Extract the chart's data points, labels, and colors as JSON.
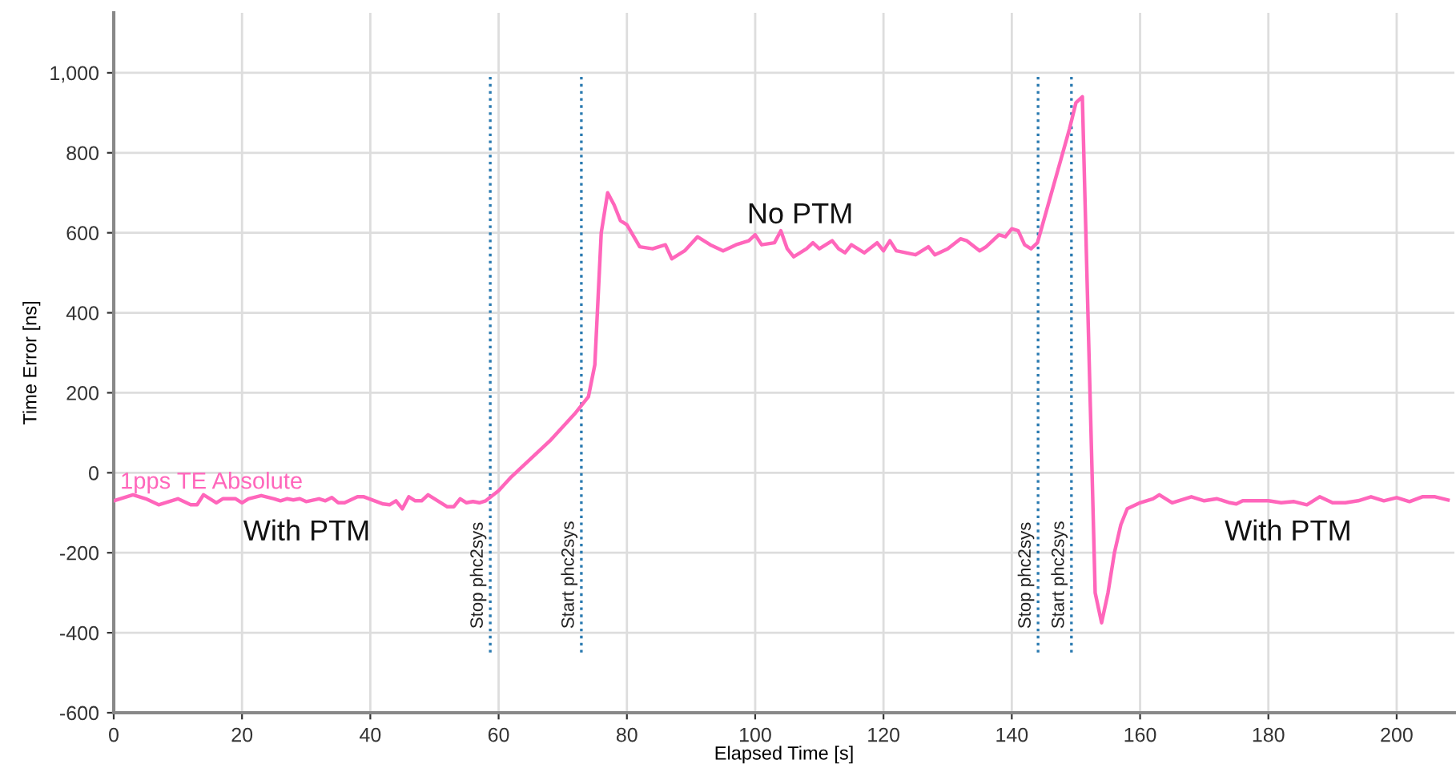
{
  "chart_data": {
    "type": "line",
    "xlabel": "Elapsed Time [s]",
    "ylabel": "Time Error [ns]",
    "xlim": [
      0,
      209
    ],
    "ylim": [
      -600,
      1150
    ],
    "xticks": [
      0,
      20,
      40,
      60,
      80,
      100,
      120,
      140,
      160,
      180,
      200
    ],
    "yticks": [
      -600,
      -400,
      -200,
      0,
      200,
      400,
      600,
      800,
      {
        "value": 1000,
        "label": "1,000"
      }
    ],
    "grid": true,
    "line_style": "solid",
    "marker": "none",
    "series": [
      {
        "name": "1pps TE Absolute",
        "color": "#ff66bb",
        "x": [
          0,
          1,
          3,
          5,
          7,
          10,
          12,
          13,
          14,
          16,
          17,
          19,
          20,
          21,
          23,
          25,
          26,
          27,
          28,
          29,
          30,
          32,
          33,
          34,
          35,
          36,
          38,
          39,
          42,
          43,
          44,
          45,
          46,
          47,
          48,
          49,
          50,
          52,
          53,
          54,
          55,
          56,
          57,
          58,
          60,
          62,
          64,
          66,
          68,
          70,
          72,
          73,
          74,
          75,
          76,
          77,
          78,
          79,
          80,
          82,
          84,
          86,
          87,
          89,
          91,
          93,
          95,
          97,
          99,
          100,
          101,
          103,
          104,
          105,
          106,
          108,
          109,
          110,
          112,
          113,
          114,
          115,
          117,
          119,
          120,
          121,
          122,
          125,
          127,
          128,
          130,
          132,
          133,
          135,
          136,
          138,
          139,
          140,
          141,
          142,
          143,
          144,
          149,
          150,
          151,
          153,
          154,
          155,
          156,
          157,
          158,
          160,
          162,
          163,
          165,
          167,
          168,
          170,
          172,
          174,
          175,
          176,
          180,
          182,
          184,
          186,
          188,
          190,
          192,
          194,
          196,
          198,
          200,
          202,
          204,
          206,
          208
        ],
        "values": [
          -70,
          -65,
          -55,
          -65,
          -80,
          -65,
          -80,
          -80,
          -55,
          -75,
          -65,
          -65,
          -75,
          -65,
          -57,
          -65,
          -70,
          -65,
          -68,
          -65,
          -72,
          -65,
          -70,
          -62,
          -75,
          -75,
          -60,
          -60,
          -78,
          -80,
          -70,
          -90,
          -60,
          -70,
          -70,
          -55,
          -65,
          -85,
          -85,
          -65,
          -75,
          -72,
          -75,
          -70,
          -45,
          -10,
          20,
          50,
          80,
          115,
          150,
          170,
          190,
          270,
          600,
          700,
          670,
          630,
          620,
          565,
          560,
          570,
          535,
          555,
          590,
          570,
          555,
          570,
          580,
          595,
          570,
          575,
          605,
          560,
          540,
          560,
          575,
          560,
          580,
          560,
          550,
          570,
          550,
          575,
          555,
          580,
          555,
          545,
          565,
          545,
          560,
          585,
          580,
          555,
          565,
          595,
          590,
          610,
          605,
          570,
          560,
          575,
          860,
          925,
          940,
          -300,
          -375,
          -300,
          -200,
          -130,
          -90,
          -75,
          -65,
          -55,
          -75,
          -65,
          -60,
          -70,
          -65,
          -75,
          -78,
          -70,
          -70,
          -75,
          -72,
          -80,
          -60,
          -75,
          -75,
          -70,
          -60,
          -70,
          -62,
          -72,
          -60,
          -60,
          -68
        ]
      }
    ],
    "ref_lines": [
      {
        "axis": "x",
        "value": 58.7,
        "label": "Stop phc2sys",
        "color": "#2a7ab0",
        "line_style": "dotted"
      },
      {
        "axis": "x",
        "value": 72.9,
        "label": "Start phc2sys",
        "color": "#2a7ab0",
        "line_style": "dotted"
      },
      {
        "axis": "x",
        "value": 144.1,
        "label": "Stop phc2sys",
        "color": "#2a7ab0",
        "line_style": "dotted"
      },
      {
        "axis": "x",
        "value": 149.3,
        "label": "Start phc2sys",
        "color": "#2a7ab0",
        "line_style": "dotted"
      }
    ],
    "annotations": [
      "With PTM",
      "No PTM",
      "With PTM"
    ]
  }
}
